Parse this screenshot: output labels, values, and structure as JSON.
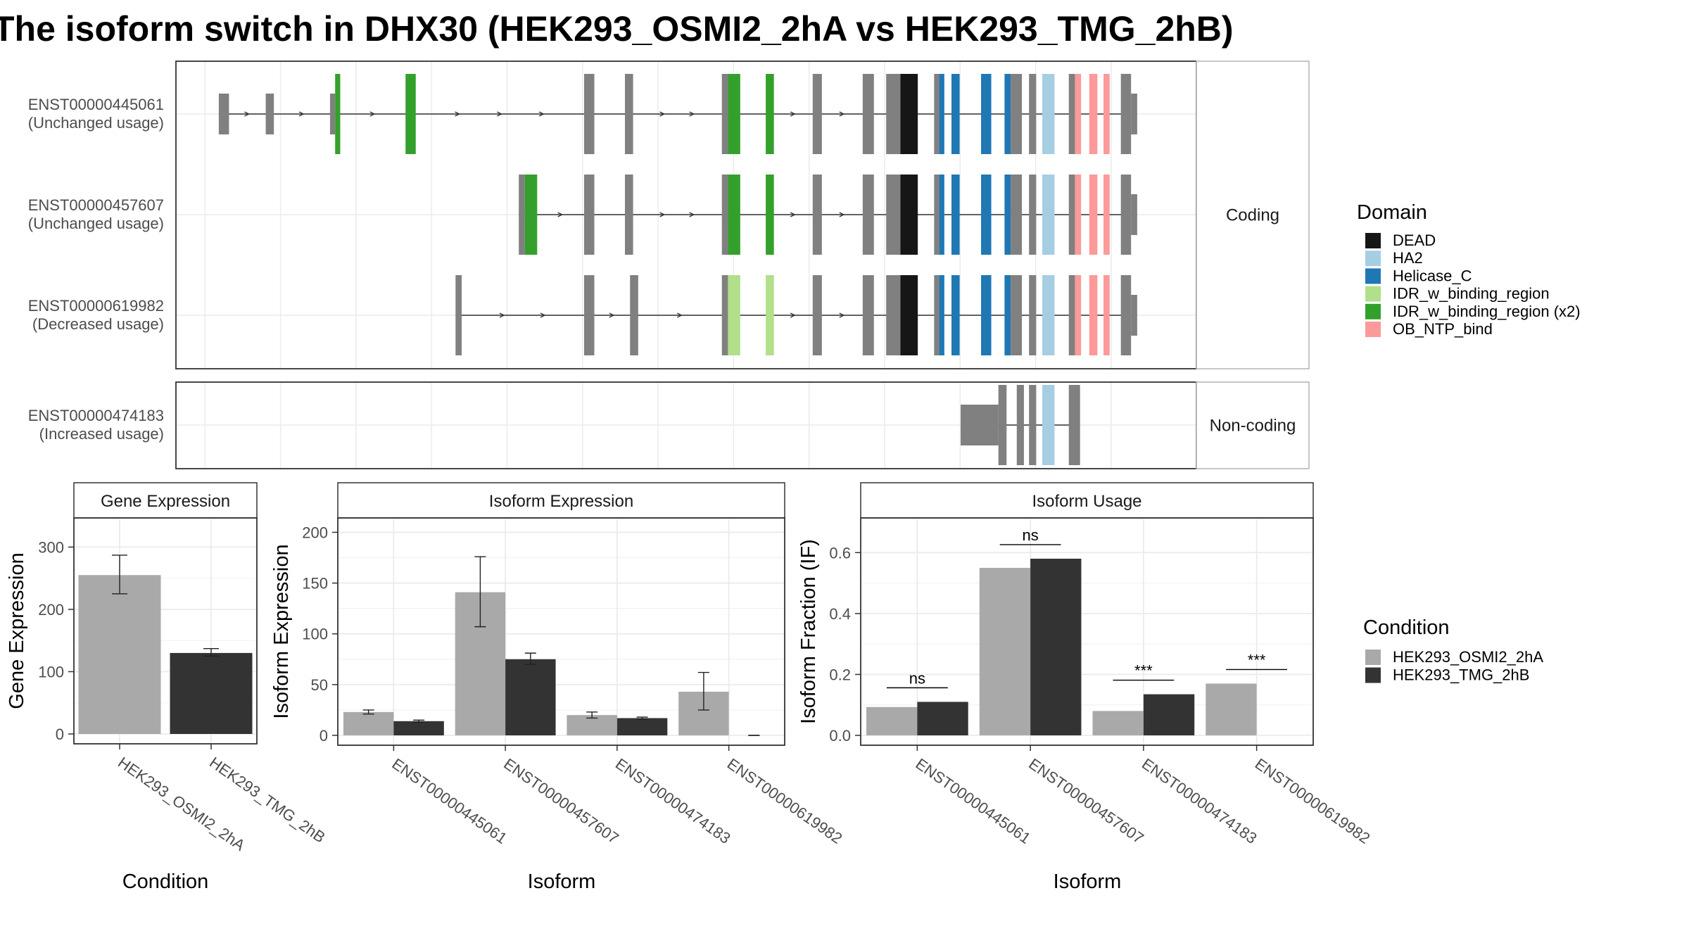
{
  "title": "The isoform switch in DHX30 (HEK293_OSMI2_2hA vs HEK293_TMG_2hB)",
  "colors": {
    "exon": "#808080",
    "condition_a": "#a9a9a9",
    "condition_b": "#333333",
    "grid": "#ebebeb",
    "panel_border": "#333333"
  },
  "structure": {
    "panels": [
      {
        "label": "Coding",
        "transcripts": [
          {
            "id": "ENST00000445061",
            "status": "(Unchanged usage)",
            "exons": [
              [
                0.042,
                0.052,
                "utr"
              ],
              [
                0.088,
                0.096,
                "utr"
              ],
              [
                0.151,
                0.156,
                "utr"
              ],
              [
                0.156,
                0.161,
                "IDR_w_binding_region (x2)"
              ],
              [
                0.225,
                0.235,
                "IDR_w_binding_region (x2)"
              ],
              [
                0.4,
                0.41,
                "cds"
              ],
              [
                0.44,
                0.448,
                "cds"
              ],
              [
                0.535,
                0.541,
                "cds"
              ],
              [
                0.541,
                0.553,
                "IDR_w_binding_region (x2)"
              ],
              [
                0.578,
                0.586,
                "IDR_w_binding_region (x2)"
              ],
              [
                0.624,
                0.633,
                "cds"
              ],
              [
                0.673,
                0.684,
                "cds"
              ],
              [
                0.696,
                0.71,
                "cds"
              ],
              [
                0.71,
                0.727,
                "DEAD"
              ],
              [
                0.743,
                0.748,
                "cds"
              ],
              [
                0.748,
                0.753,
                "Helicase_C"
              ],
              [
                0.76,
                0.768,
                "Helicase_C"
              ],
              [
                0.789,
                0.799,
                "Helicase_C"
              ],
              [
                0.812,
                0.818,
                "Helicase_C"
              ],
              [
                0.818,
                0.829,
                "cds"
              ],
              [
                0.836,
                0.843,
                "cds"
              ],
              [
                0.849,
                0.861,
                "HA2"
              ],
              [
                0.875,
                0.881,
                "cds"
              ],
              [
                0.881,
                0.887,
                "OB_NTP_bind"
              ],
              [
                0.895,
                0.903,
                "OB_NTP_bind"
              ],
              [
                0.909,
                0.915,
                "OB_NTP_bind"
              ],
              [
                0.926,
                0.936,
                "cds"
              ],
              [
                0.936,
                0.942,
                "utr"
              ]
            ]
          },
          {
            "id": "ENST00000457607",
            "status": "(Unchanged usage)",
            "exons": [
              [
                0.336,
                0.342,
                "cds"
              ],
              [
                0.342,
                0.354,
                "IDR_w_binding_region (x2)"
              ],
              [
                0.4,
                0.41,
                "cds"
              ],
              [
                0.44,
                0.448,
                "cds"
              ],
              [
                0.535,
                0.541,
                "cds"
              ],
              [
                0.541,
                0.553,
                "IDR_w_binding_region (x2)"
              ],
              [
                0.578,
                0.586,
                "IDR_w_binding_region (x2)"
              ],
              [
                0.624,
                0.633,
                "cds"
              ],
              [
                0.673,
                0.684,
                "cds"
              ],
              [
                0.696,
                0.71,
                "cds"
              ],
              [
                0.71,
                0.727,
                "DEAD"
              ],
              [
                0.743,
                0.748,
                "cds"
              ],
              [
                0.748,
                0.753,
                "Helicase_C"
              ],
              [
                0.76,
                0.768,
                "Helicase_C"
              ],
              [
                0.789,
                0.799,
                "Helicase_C"
              ],
              [
                0.812,
                0.818,
                "Helicase_C"
              ],
              [
                0.818,
                0.829,
                "cds"
              ],
              [
                0.836,
                0.843,
                "cds"
              ],
              [
                0.849,
                0.861,
                "HA2"
              ],
              [
                0.875,
                0.881,
                "cds"
              ],
              [
                0.881,
                0.887,
                "OB_NTP_bind"
              ],
              [
                0.895,
                0.903,
                "OB_NTP_bind"
              ],
              [
                0.909,
                0.915,
                "OB_NTP_bind"
              ],
              [
                0.926,
                0.936,
                "cds"
              ],
              [
                0.936,
                0.942,
                "utr"
              ]
            ]
          },
          {
            "id": "ENST00000619982",
            "status": "(Decreased usage)",
            "exons": [
              [
                0.274,
                0.28,
                "cds"
              ],
              [
                0.4,
                0.41,
                "cds"
              ],
              [
                0.445,
                0.453,
                "cds"
              ],
              [
                0.535,
                0.541,
                "cds"
              ],
              [
                0.541,
                0.553,
                "IDR_w_binding_region"
              ],
              [
                0.578,
                0.586,
                "IDR_w_binding_region"
              ],
              [
                0.624,
                0.633,
                "cds"
              ],
              [
                0.673,
                0.684,
                "cds"
              ],
              [
                0.696,
                0.71,
                "cds"
              ],
              [
                0.71,
                0.727,
                "DEAD"
              ],
              [
                0.743,
                0.748,
                "cds"
              ],
              [
                0.748,
                0.753,
                "Helicase_C"
              ],
              [
                0.76,
                0.768,
                "Helicase_C"
              ],
              [
                0.789,
                0.799,
                "Helicase_C"
              ],
              [
                0.812,
                0.818,
                "Helicase_C"
              ],
              [
                0.818,
                0.829,
                "cds"
              ],
              [
                0.836,
                0.843,
                "cds"
              ],
              [
                0.849,
                0.861,
                "HA2"
              ],
              [
                0.875,
                0.881,
                "cds"
              ],
              [
                0.881,
                0.887,
                "OB_NTP_bind"
              ],
              [
                0.895,
                0.903,
                "OB_NTP_bind"
              ],
              [
                0.909,
                0.915,
                "OB_NTP_bind"
              ],
              [
                0.926,
                0.936,
                "cds"
              ],
              [
                0.936,
                0.942,
                "utr"
              ]
            ]
          }
        ]
      },
      {
        "label": "Non-coding",
        "transcripts": [
          {
            "id": "ENST00000474183",
            "status": "(Increased usage)",
            "exons": [
              [
                0.769,
                0.806,
                "utr"
              ],
              [
                0.806,
                0.814,
                "cds"
              ],
              [
                0.824,
                0.831,
                "cds"
              ],
              [
                0.836,
                0.843,
                "cds"
              ],
              [
                0.849,
                0.861,
                "HA2"
              ],
              [
                0.875,
                0.886,
                "cds"
              ]
            ]
          }
        ]
      }
    ]
  },
  "legends": {
    "domain": {
      "title": "Domain",
      "items": [
        {
          "label": "DEAD",
          "color": "#161616"
        },
        {
          "label": "HA2",
          "color": "#a6cee3"
        },
        {
          "label": "Helicase_C",
          "color": "#1f78b4"
        },
        {
          "label": "IDR_w_binding_region",
          "color": "#b2df8a"
        },
        {
          "label": "IDR_w_binding_region (x2)",
          "color": "#33a02c"
        },
        {
          "label": "OB_NTP_bind",
          "color": "#fb9a99"
        }
      ]
    },
    "condition": {
      "title": "Condition",
      "items": [
        {
          "label": "HEK293_OSMI2_2hA",
          "color": "#a9a9a9"
        },
        {
          "label": "HEK293_TMG_2hB",
          "color": "#333333"
        }
      ]
    }
  },
  "chart_data": [
    {
      "type": "bar",
      "title": "Gene Expression",
      "xlabel": "Condition",
      "ylabel": "Gene Expression",
      "ylim": [
        0,
        340
      ],
      "yticks": [
        "0",
        "100",
        "200",
        "300"
      ],
      "categories": [
        "HEK293_OSMI2_2hA",
        "HEK293_TMG_2hB"
      ],
      "values": [
        255,
        130
      ],
      "error_low": [
        225,
        125
      ],
      "error_high": [
        287,
        137
      ]
    },
    {
      "type": "bar",
      "title": "Isoform Expression",
      "xlabel": "Isoform",
      "ylabel": "Isoform Expression",
      "ylim": [
        0,
        210
      ],
      "yticks": [
        "0",
        "50",
        "100",
        "150",
        "200"
      ],
      "categories": [
        "ENST00000445061",
        "ENST00000457607",
        "ENST00000474183",
        "ENST00000619982"
      ],
      "series": [
        {
          "name": "HEK293_OSMI2_2hA",
          "values": [
            23,
            141,
            20,
            43
          ],
          "error_low": [
            21,
            107,
            17,
            25
          ],
          "error_high": [
            25,
            176,
            23,
            62
          ]
        },
        {
          "name": "HEK293_TMG_2hB",
          "values": [
            14,
            75,
            17,
            0
          ],
          "error_low": [
            13,
            70,
            16,
            0
          ],
          "error_high": [
            15,
            81,
            18,
            0
          ]
        }
      ]
    },
    {
      "type": "bar",
      "title": "Isoform Usage",
      "xlabel": "Isoform",
      "ylabel": "Isoform Fraction (IF)",
      "ylim": [
        0,
        0.7
      ],
      "yticks": [
        "0.0",
        "0.2",
        "0.4",
        "0.6"
      ],
      "categories": [
        "ENST00000445061",
        "ENST00000457607",
        "ENST00000474183",
        "ENST00000619982"
      ],
      "series": [
        {
          "name": "HEK293_OSMI2_2hA",
          "values": [
            0.093,
            0.55,
            0.08,
            0.17
          ]
        },
        {
          "name": "HEK293_TMG_2hB",
          "values": [
            0.11,
            0.58,
            0.135,
            0
          ]
        }
      ],
      "significance": [
        "ns",
        "ns",
        "***",
        "***"
      ]
    }
  ]
}
